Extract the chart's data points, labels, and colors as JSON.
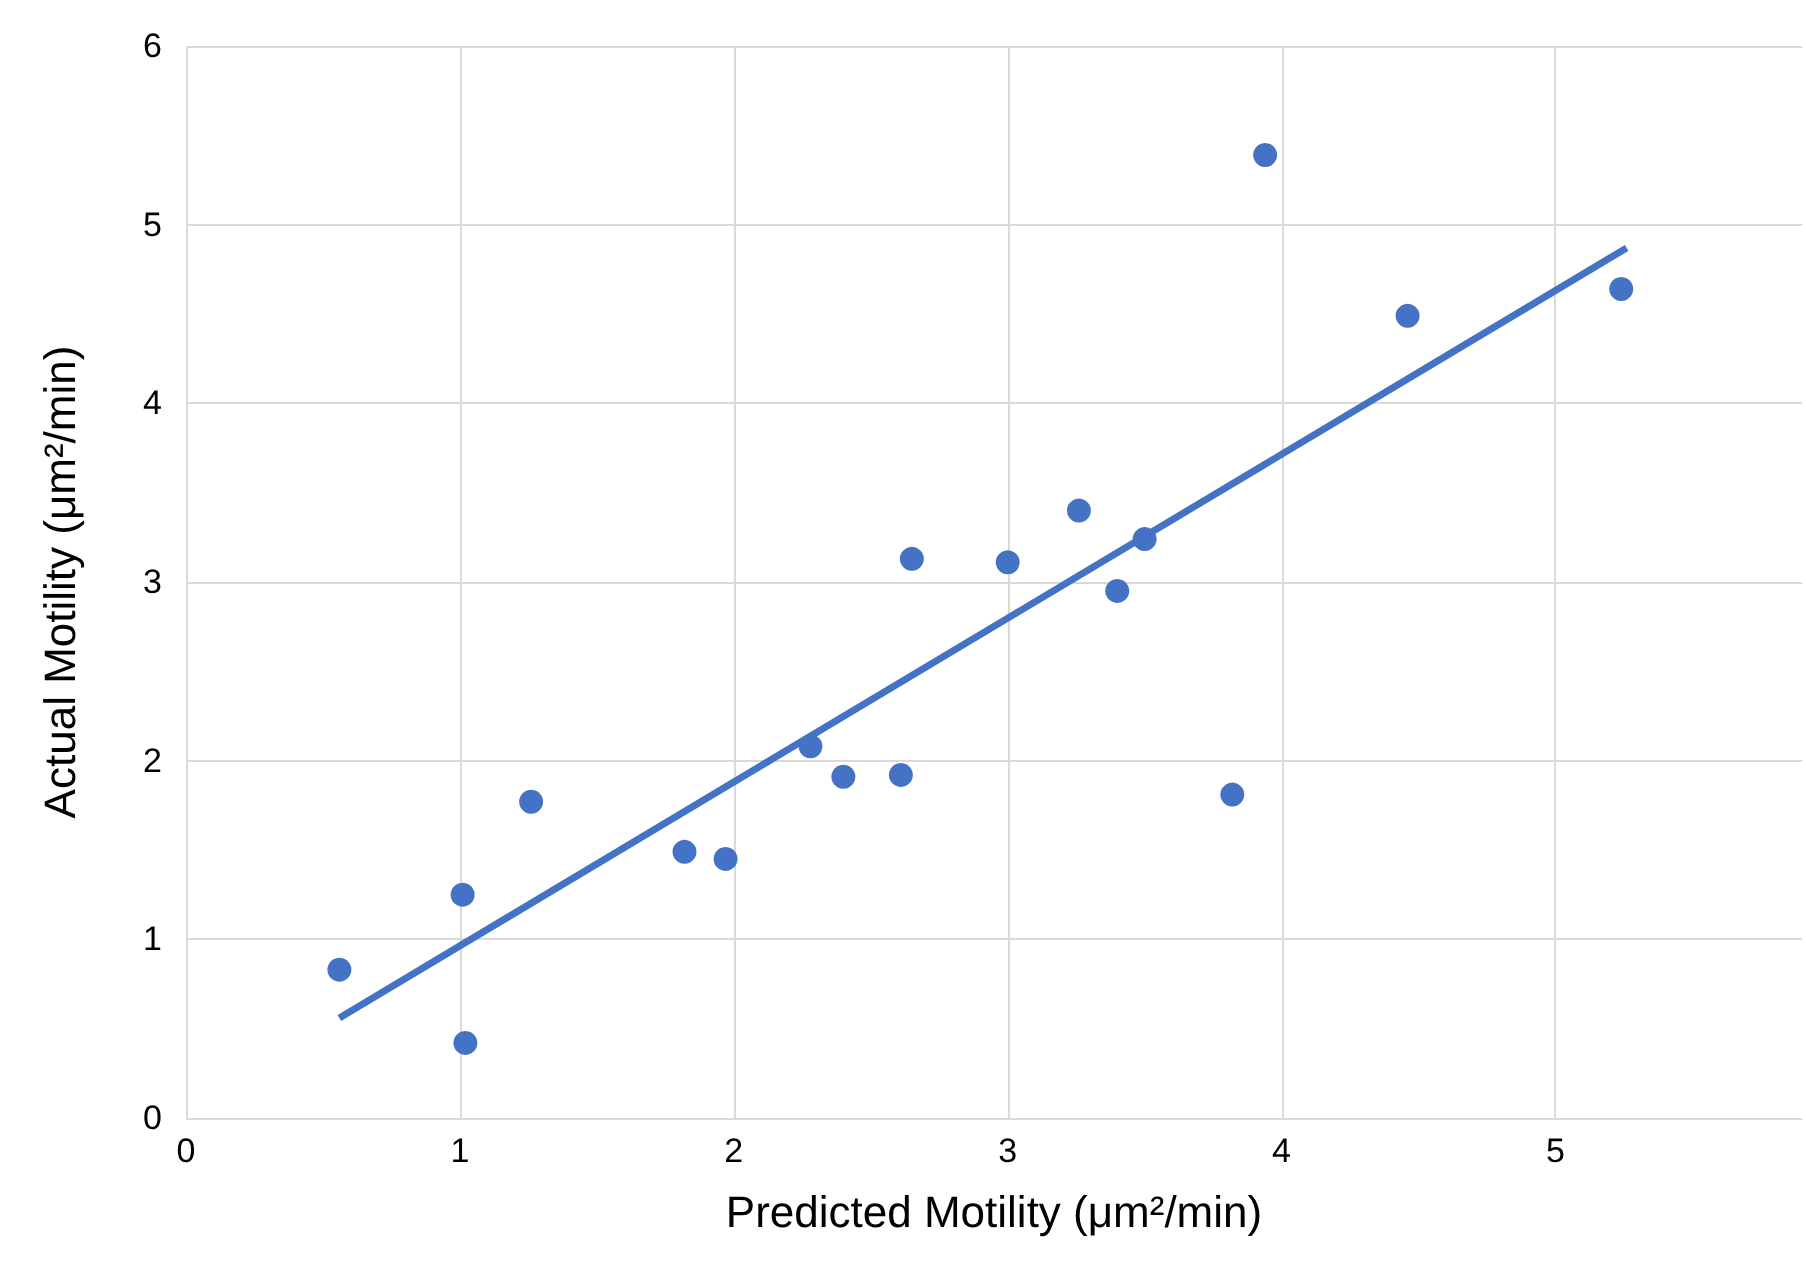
{
  "chart_data": {
    "type": "scatter",
    "xlabel": "Predicted Motility (μm²/min)",
    "ylabel": "Actual Motility (μm²/min)",
    "xlim": [
      0,
      5.9
    ],
    "ylim": [
      0,
      6
    ],
    "xticks": [
      0,
      1,
      2,
      3,
      4,
      5
    ],
    "yticks": [
      0,
      1,
      2,
      3,
      4,
      5,
      6
    ],
    "grid": true,
    "marker": "circle",
    "series": [
      {
        "color": "#4472c4",
        "x": [
          0.56,
          1.01,
          1.02,
          1.26,
          1.82,
          1.97,
          2.28,
          2.4,
          2.61,
          2.65,
          3.0,
          3.26,
          3.4,
          3.5,
          3.82,
          3.94,
          4.46,
          5.24
        ],
        "values": [
          0.83,
          1.25,
          0.42,
          1.77,
          1.49,
          1.45,
          2.08,
          1.91,
          1.92,
          3.13,
          3.11,
          3.4,
          2.95,
          3.24,
          1.81,
          5.39,
          4.49,
          4.64
        ]
      },
      {
        "type": "line",
        "color": "#4472c4",
        "line_style": "solid",
        "marker": "none",
        "x": [
          0.56,
          5.26
        ],
        "values": [
          0.56,
          4.87
        ]
      }
    ]
  }
}
